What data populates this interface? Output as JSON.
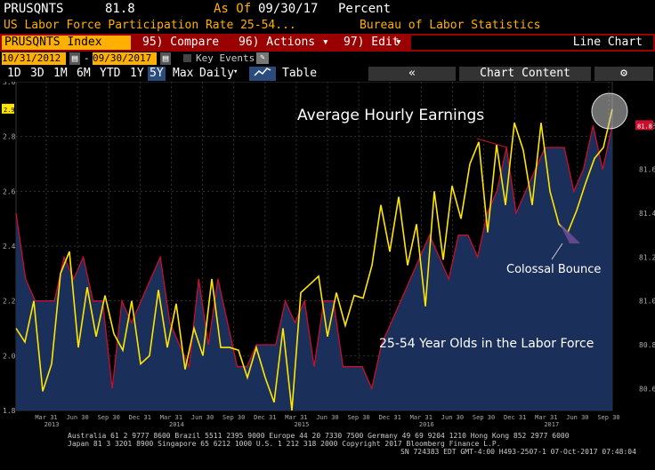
{
  "header": {
    "ticker": "PRUSQNTS",
    "value": "81.8",
    "as_of_label": "As Of",
    "as_of_date": "09/30/17",
    "unit": "Percent",
    "description": "US Labor Force Participation Rate 25-54...",
    "source": "Bureau of Labor Statistics"
  },
  "toolbar": {
    "security": "PRUSQNTS Index",
    "compare": "95) Compare",
    "actions": "96) Actions",
    "edit": "97) Edit",
    "chart_type": "Line Chart"
  },
  "dates": {
    "start": "10/31/2012",
    "end": "09/30/2017",
    "key_events": "Key Events"
  },
  "ranges": {
    "items": [
      "1D",
      "3D",
      "1M",
      "6M",
      "YTD",
      "1Y",
      "5Y",
      "Max"
    ],
    "selected": "5Y",
    "frequency": "Daily",
    "table": "Table",
    "collapse": "«",
    "chart_content": "Chart Content"
  },
  "annotations": {
    "earnings": "Average Hourly Earnings",
    "bounce": "Colossal Bounce",
    "lfpr": "25-54 Year Olds in the Labor Force"
  },
  "colors": {
    "area_fill": "#1a2f5a",
    "red_line": "#c8102e",
    "yellow_line": "#ffe600",
    "toolbar_red": "#9b0000",
    "amber": "#ffb000"
  },
  "footer": {
    "line1": "Australia 61 2 9777 8600 Brazil 5511 2395 9000 Europe 44 20 7330 7500 Germany 49 69 9204 1210 Hong Kong 852 2977 6000",
    "line2": "Japan 81 3 3201 8900       Singapore 65 6212 1000       U.S. 1 212 318 2000          Copyright 2017 Bloomberg Finance L.P.",
    "line3": "SN 724383 EDT  GMT-4:00 H493-2507-1 07-Oct-2017 07:48:04"
  },
  "chart_data": {
    "type": "line",
    "left_axis": {
      "ticks": [
        "3.0",
        "2.8",
        "2.6",
        "2.4",
        "2.2",
        "2.0",
        "1.8"
      ],
      "ylim": [
        1.8,
        3.0
      ],
      "last_label": "2.9"
    },
    "right_axis": {
      "ticks": [
        "81.8",
        "81.6",
        "81.4",
        "81.2",
        "81.0",
        "80.8",
        "80.6"
      ],
      "ylim": [
        80.5,
        82.0
      ],
      "last_label": "81.8"
    },
    "x_tick_labels": [
      "Mar 31",
      "Jun 30",
      "Sep 30",
      "Dec 31",
      "Mar 31",
      "Jun 30",
      "Sep 30",
      "Dec 31",
      "Mar 31",
      "Jun 30",
      "Sep 30",
      "Dec 31",
      "Mar 31",
      "Jun 30",
      "Sep 30",
      "Dec 31",
      "Mar 31",
      "Jun 30",
      "Sep 30"
    ],
    "year_labels": [
      "2013",
      "2014",
      "2015",
      "2016",
      "2017"
    ],
    "series": [
      {
        "name": "US Labor Force Participation Rate 25-54",
        "axis": "right",
        "values": [
          81.4,
          81.1,
          81.0,
          81.0,
          81.0,
          81.2,
          81.1,
          81.2,
          81.0,
          81.0,
          80.6,
          81.0,
          80.9,
          81.0,
          81.1,
          81.2,
          80.9,
          80.8,
          80.7,
          81.1,
          80.8,
          81.1,
          80.9,
          80.7,
          80.7,
          80.8,
          80.8,
          80.8,
          81.0,
          80.9,
          81.0,
          80.7,
          81.0,
          81.0,
          80.7,
          80.7,
          80.7,
          80.6,
          80.8,
          80.9,
          81.0,
          81.1,
          81.2,
          81.3,
          81.2,
          81.1,
          81.3,
          81.3,
          81.2,
          81.4,
          81.5,
          81.7,
          81.4,
          81.5,
          81.6,
          81.7,
          81.7,
          81.7,
          81.5,
          81.6,
          81.8,
          81.6,
          81.8
        ]
      },
      {
        "name": "Average Hourly Earnings",
        "axis": "left",
        "values": [
          2.1,
          2.05,
          2.2,
          1.87,
          1.97,
          2.3,
          2.38,
          2.03,
          2.25,
          2.07,
          2.22,
          2.08,
          2.02,
          2.2,
          1.97,
          2.0,
          2.24,
          2.03,
          2.19,
          1.95,
          2.1,
          2.0,
          2.28,
          2.03,
          2.03,
          2.02,
          1.92,
          2.03,
          1.92,
          1.83,
          2.1,
          1.8,
          2.23,
          2.26,
          2.29,
          2.07,
          2.23,
          2.11,
          2.22,
          2.21,
          2.33,
          2.55,
          2.38,
          2.58,
          2.33,
          2.48,
          2.18,
          2.6,
          2.35,
          2.62,
          2.5,
          2.7,
          2.78,
          2.45,
          2.77,
          2.55,
          2.85,
          2.75,
          2.55,
          2.85,
          2.6,
          2.48,
          2.45,
          2.53,
          2.63,
          2.72,
          2.76,
          2.9
        ]
      }
    ],
    "grid": true
  }
}
